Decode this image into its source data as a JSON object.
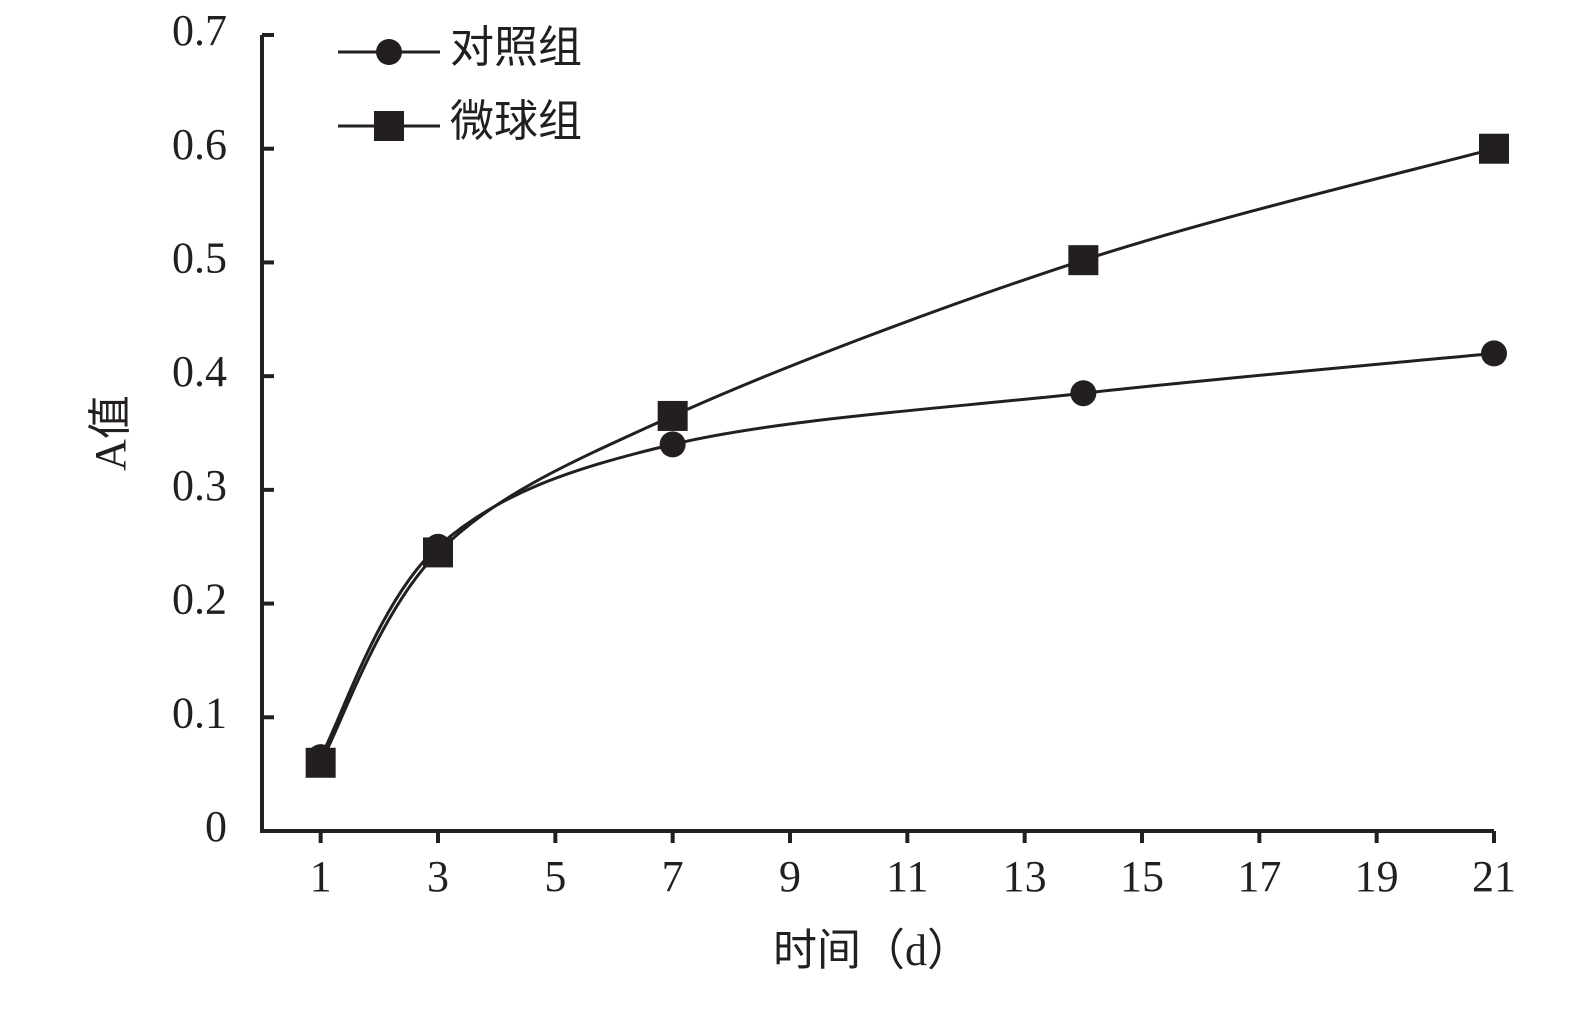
{
  "chart_data": {
    "type": "line",
    "smooth": true,
    "x_label": "时间（d）",
    "y_label": "A值",
    "x": [
      1,
      3,
      7,
      14,
      21
    ],
    "series": [
      {
        "name": "对照组",
        "color": "#231f20",
        "marker": "circle",
        "values": [
          0.065,
          0.25,
          0.34,
          0.385,
          0.42
        ]
      },
      {
        "name": "微球组",
        "color": "#231f20",
        "marker": "square",
        "values": [
          0.06,
          0.245,
          0.365,
          0.502,
          0.6
        ]
      }
    ],
    "xlim": [
      0,
      21
    ],
    "xticks": [
      1,
      3,
      5,
      7,
      9,
      11,
      13,
      15,
      17,
      19,
      21
    ],
    "ylim": [
      0,
      0.7
    ],
    "yticks": [
      0,
      0.1,
      0.2,
      0.3,
      0.4,
      0.5,
      0.6,
      0.7
    ],
    "grid": false,
    "legend": "upper-left"
  }
}
